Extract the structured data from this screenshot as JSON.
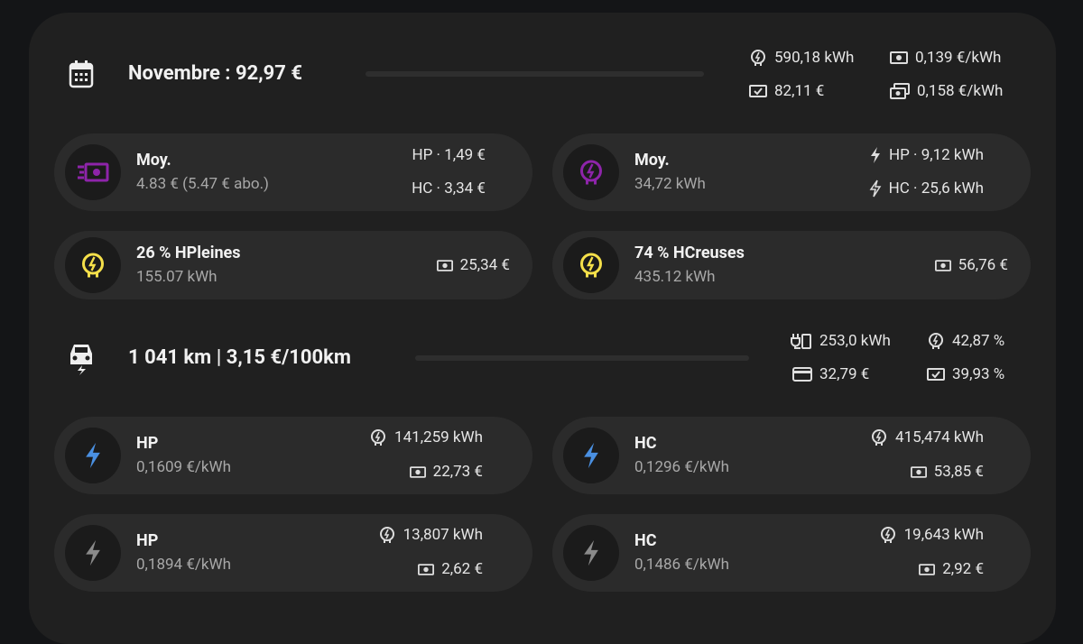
{
  "month": {
    "title": "Novembre : 92,97 €",
    "stats": [
      "590,18 kWh",
      "0,139 €/kWh",
      "82,11 €",
      "0,158 €/kWh"
    ]
  },
  "cost_cards": [
    {
      "title": "Moy.",
      "subtitle": "4.83 € (5.47 € abo.)",
      "details": [
        "HP · 1,49 €",
        "HC · 3,34 €"
      ]
    },
    {
      "title": "Moy.",
      "subtitle": "34,72 kWh",
      "details": [
        "HP · 9,12 kWh",
        "HC · 25,6 kWh"
      ]
    },
    {
      "title": "26 % HPleines",
      "subtitle": "155.07 kWh",
      "details": [
        "25,34 €"
      ]
    },
    {
      "title": "74 % HCreuses",
      "subtitle": "435.12 kWh",
      "details": [
        "56,76 €"
      ]
    }
  ],
  "car": {
    "title": "1 041 km | 3,15 €/100km",
    "stats": [
      "253,0 kWh",
      "42,87 %",
      "32,79 €",
      "39,93 %"
    ]
  },
  "car_cards": [
    {
      "title": "HP",
      "subtitle": "0,1609 €/kWh",
      "details": [
        "141,259 kWh",
        "22,73 €"
      ]
    },
    {
      "title": "HC",
      "subtitle": "0,1296 €/kWh",
      "details": [
        "415,474 kWh",
        "53,85 €"
      ]
    },
    {
      "title": "HP",
      "subtitle": "0,1894 €/kWh",
      "details": [
        "13,807 kWh",
        "2,62 €"
      ]
    },
    {
      "title": "HC",
      "subtitle": "0,1486 €/kWh",
      "details": [
        "19,643 kWh",
        "2,92 €"
      ]
    }
  ]
}
